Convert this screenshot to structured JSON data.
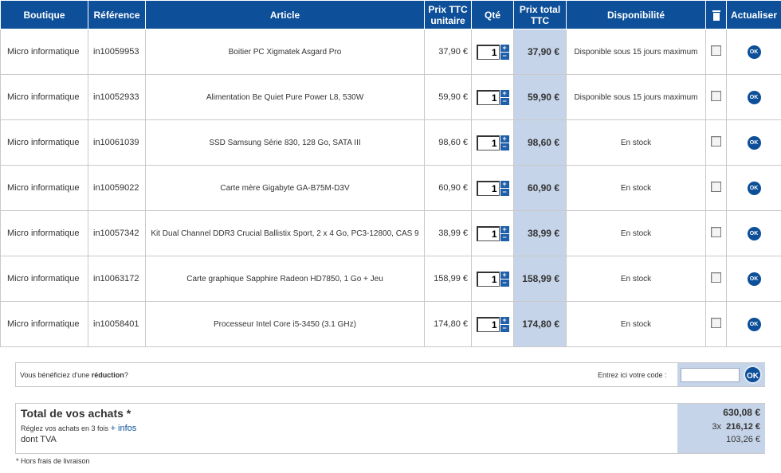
{
  "headers": {
    "shop": "Boutique",
    "reference": "Référence",
    "article": "Article",
    "unit_price_1": "Prix TTC",
    "unit_price_2": "unitaire",
    "qty": "Qté",
    "total_1": "Prix total",
    "total_2": "TTC",
    "availability": "Disponibilité",
    "delete_icon": "trash-icon",
    "update": "Actualiser"
  },
  "rows": [
    {
      "shop": "Micro informatique",
      "ref": "in10059953",
      "article": "Boitier PC Xigmatek Asgard Pro",
      "unit": "37,90 €",
      "qty": "1",
      "total": "37,90 €",
      "avail": "Disponible sous 15 jours maximum",
      "ok": "OK"
    },
    {
      "shop": "Micro informatique",
      "ref": "in10052933",
      "article": "Alimentation Be Quiet Pure Power L8, 530W",
      "unit": "59,90 €",
      "qty": "1",
      "total": "59,90 €",
      "avail": "Disponible sous 15 jours maximum",
      "ok": "OK"
    },
    {
      "shop": "Micro informatique",
      "ref": "in10061039",
      "article": "SSD Samsung Série 830, 128 Go, SATA III",
      "unit": "98,60 €",
      "qty": "1",
      "total": "98,60 €",
      "avail": "En stock",
      "ok": "OK"
    },
    {
      "shop": "Micro informatique",
      "ref": "in10059022",
      "article": "Carte mère Gigabyte GA-B75M-D3V",
      "unit": "60,90 €",
      "qty": "1",
      "total": "60,90 €",
      "avail": "En stock",
      "ok": "OK"
    },
    {
      "shop": "Micro informatique",
      "ref": "in10057342",
      "article": "Kit Dual Channel DDR3 Crucial Ballistix Sport, 2 x 4 Go, PC3-12800, CAS 9",
      "unit": "38,99 €",
      "qty": "1",
      "total": "38,99 €",
      "avail": "En stock",
      "ok": "OK"
    },
    {
      "shop": "Micro informatique",
      "ref": "in10063172",
      "article": "Carte graphique Sapphire Radeon HD7850, 1 Go + Jeu",
      "unit": "158,99 €",
      "qty": "1",
      "total": "158,99 €",
      "avail": "En stock",
      "ok": "OK"
    },
    {
      "shop": "Micro informatique",
      "ref": "in10058401",
      "article": "Processeur Intel Core i5-3450 (3.1 GHz)",
      "unit": "174,80 €",
      "qty": "1",
      "total": "174,80 €",
      "avail": "En stock",
      "ok": "OK"
    }
  ],
  "stepper": {
    "plus": "+",
    "minus": "−"
  },
  "reduction": {
    "text_before": "Vous bénéficiez d'une ",
    "text_bold": "réduction",
    "text_after": "?",
    "code_label": "Entrez ici votre code :",
    "ok": "OK"
  },
  "totals": {
    "title": "Total de vos achats *",
    "installments_text": "Réglez vos achats en 3 fois ",
    "installments_link": "+ infos",
    "vat_label": "dont TVA",
    "grand_total": "630,08 €",
    "installments_prefix": "3x",
    "installments_amount": "216,12 €",
    "vat_amount": "103,26 €"
  },
  "footnote": "* Hors frais de livraison",
  "colors": {
    "header_bg": "#0d4f99",
    "total_col_bg": "#c6d4e9",
    "border": "#c9c9c9"
  }
}
